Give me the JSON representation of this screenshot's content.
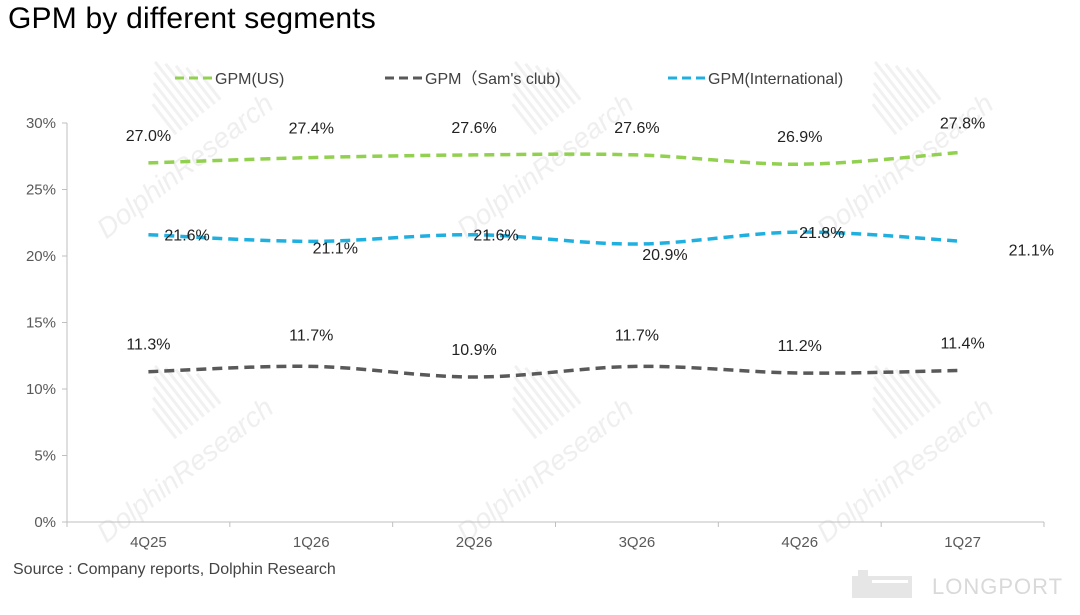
{
  "title": "GPM by different segments",
  "source": "Source : Company reports, Dolphin Research",
  "watermark": "DolphinResearch",
  "brand": "LONGPORT",
  "chart_data": {
    "type": "line",
    "categories": [
      "4Q25",
      "1Q26",
      "2Q26",
      "3Q26",
      "4Q26",
      "1Q27"
    ],
    "ylim": [
      0,
      30
    ],
    "yticks": [
      "0%",
      "5%",
      "10%",
      "15%",
      "20%",
      "25%",
      "30%"
    ],
    "grid": false,
    "legend_position": "top",
    "series": [
      {
        "name": "GPM(US)",
        "color": "#92d050",
        "values": [
          27.0,
          27.4,
          27.6,
          27.6,
          26.9,
          27.8
        ],
        "labels": [
          "27.0%",
          "27.4%",
          "27.6%",
          "27.6%",
          "26.9%",
          "27.8%"
        ]
      },
      {
        "name": "GPM（Sam's club)",
        "color": "#595959",
        "values": [
          11.3,
          11.7,
          10.9,
          11.7,
          11.2,
          11.4
        ],
        "labels": [
          "11.3%",
          "11.7%",
          "10.9%",
          "11.7%",
          "11.2%",
          "11.4%"
        ]
      },
      {
        "name": "GPM(International)",
        "color": "#1fb0e0",
        "values": [
          21.6,
          21.1,
          21.6,
          20.9,
          21.8,
          21.1
        ],
        "labels": [
          "21.6%",
          "21.1%",
          "21.6%",
          "20.9%",
          "21.8%",
          "21.1%"
        ]
      }
    ]
  }
}
